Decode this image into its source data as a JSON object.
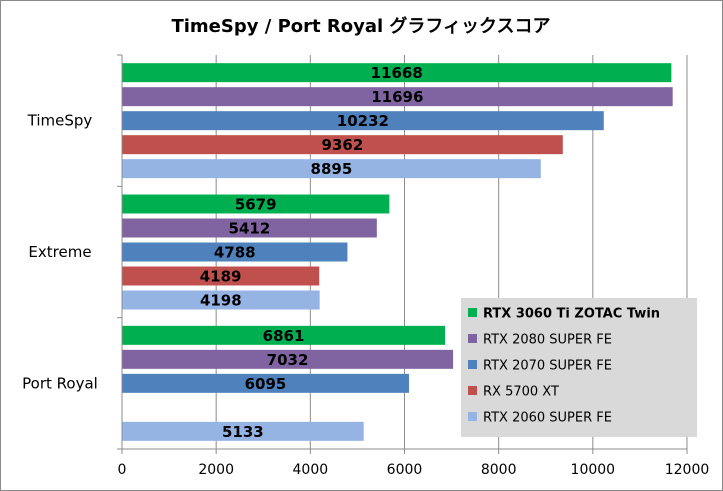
{
  "chart_data": {
    "type": "bar",
    "orientation": "horizontal",
    "title": "TimeSpy / Port Royal グラフィックスコア",
    "xlabel": "",
    "ylabel": "",
    "xlim": [
      0,
      12000
    ],
    "x_ticks": [
      "0",
      "2000",
      "4000",
      "6000",
      "8000",
      "10000",
      "12000"
    ],
    "grid": "vertical",
    "legend_position": "bottom-right",
    "categories": [
      "TimeSpy",
      "Extreme",
      "Port Royal"
    ],
    "series": [
      {
        "name": "RTX 3060 Ti ZOTAC Twin",
        "color": "#00b050",
        "bold": true,
        "values": [
          11668,
          5679,
          6861
        ]
      },
      {
        "name": "RTX 2080 SUPER FE",
        "color": "#8064a2",
        "bold": false,
        "values": [
          11696,
          5412,
          7032
        ]
      },
      {
        "name": "RTX 2070 SUPER FE",
        "color": "#4f81bd",
        "bold": false,
        "values": [
          10232,
          4788,
          6095
        ]
      },
      {
        "name": "RX 5700 XT",
        "color": "#c0504d",
        "bold": false,
        "values": [
          9362,
          4189,
          null
        ]
      },
      {
        "name": "RTX 2060 SUPER FE",
        "color": "#95b3e3",
        "bold": false,
        "values": [
          8895,
          4198,
          5133
        ]
      }
    ]
  }
}
